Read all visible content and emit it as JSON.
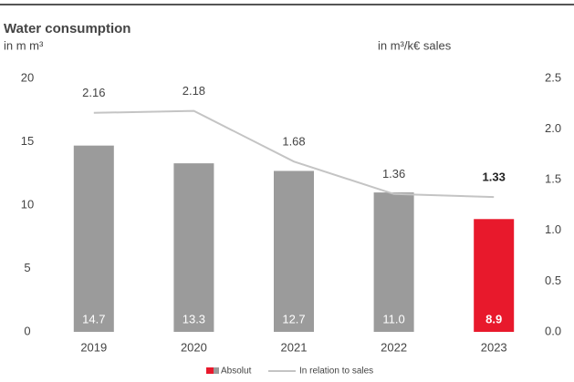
{
  "chart_data": {
    "type": "bar",
    "title": "Water consumption",
    "y_label": "in m m³",
    "y2_label": "in m³/k€ sales",
    "categories": [
      "2019",
      "2020",
      "2021",
      "2022",
      "2023"
    ],
    "series": [
      {
        "name": "Absolut",
        "type": "bar",
        "color": "#9b9b9b",
        "colors": [
          "#9b9b9b",
          "#9b9b9b",
          "#9b9b9b",
          "#9b9b9b",
          "#e8192c"
        ],
        "values": [
          14.7,
          13.3,
          12.7,
          11.0,
          8.9
        ],
        "value_labels": [
          "14.7",
          "13.3",
          "12.7",
          "11.0",
          "8.9"
        ]
      },
      {
        "name": "In relation to sales",
        "type": "line",
        "axis": "y2",
        "color": "#c4c4c4",
        "values": [
          2.16,
          2.18,
          1.68,
          1.36,
          1.33
        ]
      }
    ],
    "ylim": [
      0,
      20
    ],
    "yticks": [
      0,
      5,
      10,
      15,
      20
    ],
    "y2lim": [
      0,
      2.5
    ],
    "y2ticks": [
      {
        "value": 0,
        "label": "0.0"
      },
      0.5,
      {
        "value": 1,
        "label": "1.0"
      },
      1.5,
      {
        "value": 2,
        "label": "2.0"
      },
      2.5
    ],
    "grid": false
  }
}
